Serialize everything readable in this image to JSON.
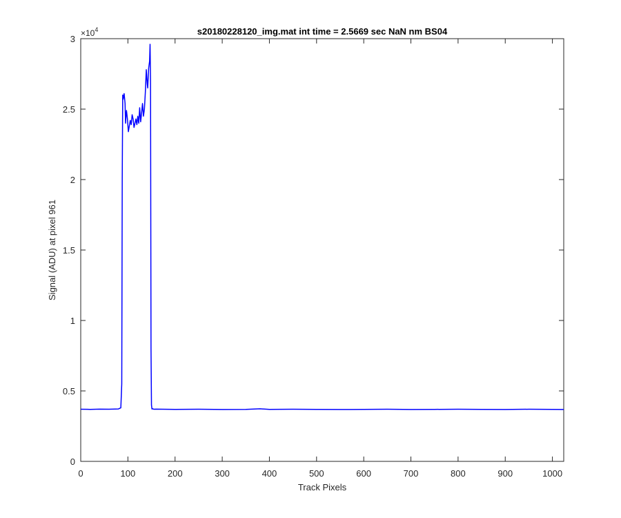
{
  "chart_data": {
    "type": "line",
    "title": "s20180228120_img.mat int time = 2.5669 sec  NaN nm BS04",
    "xlabel": "Track Pixels",
    "ylabel": "Signal (ADU) at pixel 961",
    "xlim": [
      0,
      1024
    ],
    "ylim": [
      0,
      30000
    ],
    "x_ticks": [
      0,
      100,
      200,
      300,
      400,
      500,
      600,
      700,
      800,
      900,
      1000
    ],
    "x_tick_labels": [
      "0",
      "100",
      "200",
      "300",
      "400",
      "500",
      "600",
      "700",
      "800",
      "900",
      "1000"
    ],
    "y_ticks": [
      0,
      5000,
      10000,
      15000,
      20000,
      25000,
      30000
    ],
    "y_tick_labels": [
      "0",
      "0.5",
      "1",
      "1.5",
      "2",
      "2.5",
      "3"
    ],
    "y_exponent_base": "×10",
    "y_exponent_power": "4",
    "grid": false,
    "line_color": "#0000ff",
    "series": [
      {
        "x": [
          0,
          20,
          40,
          60,
          80,
          85,
          87,
          88,
          89,
          90,
          92,
          94,
          95,
          96,
          97,
          99,
          101,
          103,
          105,
          107,
          109,
          111,
          113,
          115,
          117,
          119,
          121,
          123,
          125,
          127,
          129,
          131,
          133,
          135,
          137,
          139,
          141,
          142,
          144,
          146,
          147,
          148,
          149,
          150,
          151,
          153,
          155,
          160,
          200,
          250,
          300,
          350,
          380,
          400,
          450,
          500,
          550,
          600,
          650,
          700,
          750,
          800,
          850,
          900,
          950,
          1000,
          1024
        ],
        "y": [
          3700,
          3690,
          3710,
          3700,
          3720,
          3800,
          5500,
          20000,
          26000,
          25700,
          26100,
          25400,
          24000,
          24500,
          24900,
          24300,
          23400,
          23800,
          24200,
          23900,
          24600,
          24300,
          23700,
          24000,
          24300,
          23900,
          24500,
          24000,
          25100,
          24100,
          24700,
          25400,
          24500,
          25000,
          26200,
          27800,
          26800,
          26500,
          27900,
          28400,
          29600,
          27000,
          8000,
          4000,
          3720,
          3730,
          3700,
          3710,
          3690,
          3700,
          3680,
          3690,
          3730,
          3690,
          3700,
          3690,
          3680,
          3690,
          3700,
          3680,
          3690,
          3700,
          3690,
          3680,
          3700,
          3690,
          3680
        ]
      }
    ]
  }
}
